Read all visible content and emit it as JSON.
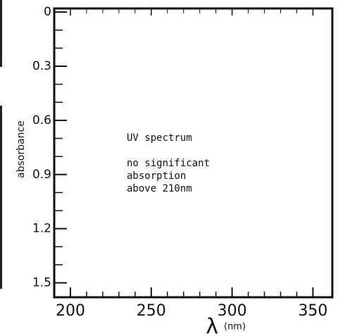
{
  "chart_data": {
    "type": "line",
    "x_label": "λ",
    "x_unit": "(nm)",
    "y_label": "absorbance",
    "annotations": [
      "UV spectrum",
      "no significant",
      "absorption",
      "above 210nm"
    ],
    "xlim": [
      190,
      362
    ],
    "xticks": [
      200,
      250,
      300,
      350
    ],
    "ylim": [
      -0.02,
      1.58
    ],
    "yticks": [
      0,
      0.3,
      0.6,
      0.9,
      1.2,
      1.5
    ],
    "y_inverted": true,
    "color": "#111111"
  }
}
